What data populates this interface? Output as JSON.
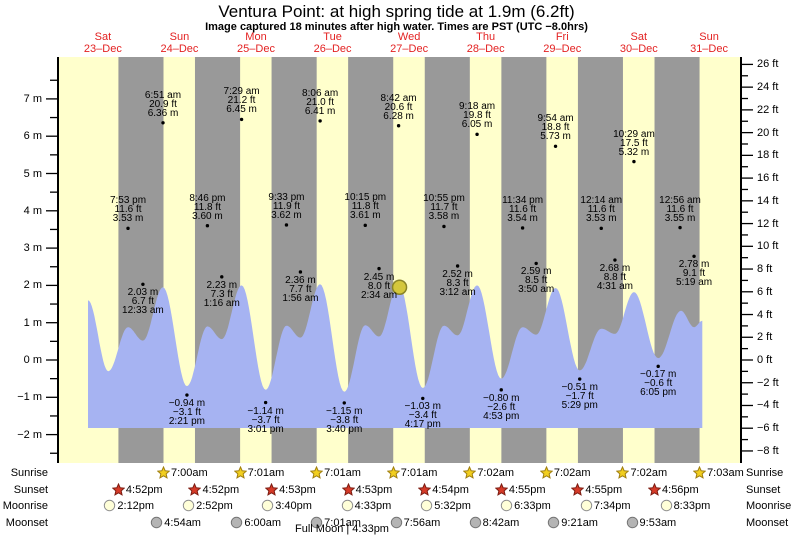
{
  "title": "Ventura Point: at high  spring tide at 1.9m (6.2ft)",
  "subtitle": "Image captured 18 minutes after high water. Times are PST (UTC −8.0hrs)",
  "days": [
    {
      "day": "Sat",
      "date": "23–Dec"
    },
    {
      "day": "Sun",
      "date": "24–Dec"
    },
    {
      "day": "Mon",
      "date": "25–Dec"
    },
    {
      "day": "Tue",
      "date": "26–Dec"
    },
    {
      "day": "Wed",
      "date": "27–Dec"
    },
    {
      "day": "Thu",
      "date": "28–Dec"
    },
    {
      "day": "Fri",
      "date": "29–Dec"
    },
    {
      "day": "Sat",
      "date": "30–Dec"
    },
    {
      "day": "Sun",
      "date": "31–Dec"
    }
  ],
  "colors": {
    "day_band": "#ffffcc",
    "night_band": "#999999",
    "tide_fill": "#a6b3f2",
    "day_label_red": "#e32222",
    "axis_black": "#000000",
    "marker_fill": "#d4c73c",
    "marker_stroke": "#8a8426",
    "sunrise_fill": "#f2cf1f",
    "sunrise_stroke": "#a07f10",
    "sunset_fill": "#d63a28",
    "sunset_stroke": "#7d1d12",
    "moonrise_fill": "#ffffd8",
    "moonrise_stroke": "#8f8f8f",
    "moonset_fill": "#b4b4b4",
    "moonset_stroke": "#757575"
  },
  "chart_data": {
    "type": "area",
    "title": "Ventura Point tide, Sat 23-Dec to Sun 31-Dec (PST)",
    "x_unit": "hours from Sat 23-Dec 00:00",
    "y_axis_left": {
      "unit": "m",
      "ticks": [
        7,
        6,
        5,
        4,
        3,
        2,
        1,
        0,
        -1,
        -2
      ],
      "labels": [
        "7 m",
        "6 m",
        "5 m",
        "4 m",
        "3 m",
        "2 m",
        "1 m",
        "0 m",
        "−1 m",
        "−2 m"
      ],
      "minor_step_m": 0.5
    },
    "y_axis_right": {
      "unit": "ft",
      "ticks": [
        26,
        24,
        22,
        20,
        18,
        16,
        14,
        12,
        10,
        8,
        6,
        4,
        2,
        0,
        -2,
        -4,
        -6,
        -8
      ],
      "labels": [
        "26 ft",
        "24 ft",
        "22 ft",
        "20 ft",
        "18 ft",
        "16 ft",
        "14 ft",
        "12 ft",
        "10 ft",
        "8 ft",
        "6 ft",
        "4 ft",
        "2 ft",
        "0 ft",
        "−2 ft",
        "−4 ft",
        "−6 ft",
        "−8 ft"
      ]
    },
    "night_bands_hours": [
      [
        16.87,
        31.0
      ],
      [
        40.87,
        55.02
      ],
      [
        64.88,
        79.02
      ],
      [
        88.88,
        103.02
      ],
      [
        112.9,
        127.03
      ],
      [
        136.92,
        151.03
      ],
      [
        160.92,
        175.03
      ],
      [
        184.93,
        199.05
      ]
    ],
    "tide_curve_points_t_vs_m": [
      [
        7.34,
        1.6
      ],
      [
        13.7,
        -0.3
      ],
      [
        19.88,
        0.88
      ],
      [
        24.55,
        0.52
      ],
      [
        30.85,
        1.95
      ],
      [
        38.35,
        -0.7
      ],
      [
        44.77,
        0.9
      ],
      [
        49.27,
        0.56
      ],
      [
        55.48,
        2.0
      ],
      [
        63.02,
        -0.8
      ],
      [
        69.55,
        0.92
      ],
      [
        73.93,
        0.6
      ],
      [
        80.1,
        2.03
      ],
      [
        87.67,
        -0.85
      ],
      [
        94.25,
        0.93
      ],
      [
        98.57,
        0.63
      ],
      [
        104.7,
        2.06
      ],
      [
        112.28,
        -0.75
      ],
      [
        118.92,
        0.92
      ],
      [
        123.2,
        0.66
      ],
      [
        129.3,
        2.0
      ],
      [
        136.88,
        -0.5
      ],
      [
        143.57,
        0.88
      ],
      [
        147.83,
        0.68
      ],
      [
        153.9,
        1.93
      ],
      [
        161.48,
        -0.28
      ],
      [
        168.23,
        0.84
      ],
      [
        172.52,
        0.7
      ],
      [
        178.48,
        1.82
      ],
      [
        186.08,
        0.05
      ],
      [
        193.2,
        1.32
      ],
      [
        197.32,
        0.88
      ],
      [
        199.9,
        1.05
      ]
    ],
    "annotations": {
      "morning_highs": {
        "text_position": "above-dot",
        "entries": [
          {
            "t": 30.85,
            "v": 6.36,
            "lines": [
              "6:51 am",
              "20.9 ft",
              "6.36 m"
            ]
          },
          {
            "t": 55.48,
            "v": 6.45,
            "lines": [
              "7:29 am",
              "21.2 ft",
              "6.45 m"
            ]
          },
          {
            "t": 80.1,
            "v": 6.41,
            "lines": [
              "8:06 am",
              "21.0 ft",
              "6.41 m"
            ]
          },
          {
            "t": 104.7,
            "v": 6.28,
            "lines": [
              "8:42 am",
              "20.6 ft",
              "6.28 m"
            ]
          },
          {
            "t": 129.3,
            "v": 6.05,
            "lines": [
              "9:18 am",
              "19.8 ft",
              "6.05 m"
            ]
          },
          {
            "t": 153.9,
            "v": 5.73,
            "lines": [
              "9:54 am",
              "18.8 ft",
              "5.73 m"
            ]
          },
          {
            "t": 178.48,
            "v": 5.32,
            "lines": [
              "10:29 am",
              "17.5 ft",
              "5.32 m"
            ]
          }
        ]
      },
      "evening_highs": {
        "text_position": "above-dot",
        "entries": [
          {
            "t": 19.88,
            "v": 3.53,
            "lines": [
              "7:53 pm",
              "11.6 ft",
              "3.53 m"
            ]
          },
          {
            "t": 44.77,
            "v": 3.6,
            "lines": [
              "8:46 pm",
              "11.8 ft",
              "3.60 m"
            ]
          },
          {
            "t": 69.55,
            "v": 3.62,
            "lines": [
              "9:33 pm",
              "11.9 ft",
              "3.62 m"
            ]
          },
          {
            "t": 94.25,
            "v": 3.61,
            "lines": [
              "10:15 pm",
              "11.8 ft",
              "3.61 m"
            ]
          },
          {
            "t": 118.92,
            "v": 3.58,
            "lines": [
              "10:55 pm",
              "11.7 ft",
              "3.58 m"
            ]
          },
          {
            "t": 143.57,
            "v": 3.54,
            "lines": [
              "11:34 pm",
              "11.6 ft",
              "3.54 m"
            ]
          },
          {
            "t": 168.23,
            "v": 3.53,
            "lines": [
              "12:14 am",
              "11.6 ft",
              "3.53 m"
            ]
          },
          {
            "t": 192.93,
            "v": 3.55,
            "lines": [
              "12:56 am",
              "11.6 ft",
              "3.55 m"
            ]
          }
        ]
      },
      "overnight_highs": {
        "text_position": "below-dot",
        "entries": [
          {
            "t": 24.55,
            "v": 2.03,
            "lines": [
              "2.03 m",
              "6.7 ft",
              "12:33 am"
            ]
          },
          {
            "t": 49.27,
            "v": 2.23,
            "lines": [
              "2.23 m",
              "7.3 ft",
              "1:16 am"
            ]
          },
          {
            "t": 73.93,
            "v": 2.36,
            "lines": [
              "2.36 m",
              "7.7 ft",
              "1:56 am"
            ]
          },
          {
            "t": 98.57,
            "v": 2.45,
            "lines": [
              "2.45 m",
              "8.0 ft",
              "2:34 am"
            ]
          },
          {
            "t": 123.2,
            "v": 2.52,
            "lines": [
              "2.52 m",
              "8.3 ft",
              "3:12 am"
            ]
          },
          {
            "t": 147.83,
            "v": 2.59,
            "lines": [
              "2.59 m",
              "8.5 ft",
              "3:50 am"
            ]
          },
          {
            "t": 172.52,
            "v": 2.68,
            "lines": [
              "2.68 m",
              "8.8 ft",
              "4:31 am"
            ]
          },
          {
            "t": 197.32,
            "v": 2.78,
            "lines": [
              "2.78 m",
              "9.1 ft",
              "5:19 am"
            ]
          }
        ]
      },
      "afternoon_lows": {
        "text_position": "below-dot",
        "entries": [
          {
            "t": 38.35,
            "v": -0.94,
            "lines": [
              "−0.94 m",
              "−3.1 ft",
              "2:21 pm"
            ]
          },
          {
            "t": 63.02,
            "v": -1.14,
            "lines": [
              "−1.14 m",
              "−3.7 ft",
              "3:01 pm"
            ]
          },
          {
            "t": 87.67,
            "v": -1.15,
            "lines": [
              "−1.15 m",
              "−3.8 ft",
              "3:40 pm"
            ]
          },
          {
            "t": 112.28,
            "v": -1.03,
            "lines": [
              "−1.03 m",
              "−3.4 ft",
              "4:17 pm"
            ]
          },
          {
            "t": 136.88,
            "v": -0.8,
            "lines": [
              "−0.80 m",
              "−2.6 ft",
              "4:53 pm"
            ]
          },
          {
            "t": 161.48,
            "v": -0.51,
            "lines": [
              "−0.51 m",
              "−1.7 ft",
              "5:29 pm"
            ]
          },
          {
            "t": 186.08,
            "v": -0.17,
            "lines": [
              "−0.17 m",
              "−0.6 ft",
              "6:05 pm"
            ]
          }
        ]
      }
    },
    "current_time_marker": {
      "t": 105.0,
      "v": 1.95,
      "note": "18 minutes after high water"
    }
  },
  "astro": {
    "rows": [
      {
        "label": "Sunrise",
        "icon": "sunrise-star",
        "events": [
          {
            "t": 31.0,
            "label": "7:00am"
          },
          {
            "t": 55.02,
            "label": "7:01am"
          },
          {
            "t": 79.02,
            "label": "7:01am"
          },
          {
            "t": 103.02,
            "label": "7:01am"
          },
          {
            "t": 127.03,
            "label": "7:02am"
          },
          {
            "t": 151.03,
            "label": "7:02am"
          },
          {
            "t": 175.03,
            "label": "7:02am"
          },
          {
            "t": 199.05,
            "label": "7:03am"
          }
        ]
      },
      {
        "label": "Sunset",
        "icon": "sunset-star",
        "events": [
          {
            "t": 16.87,
            "label": "4:52pm"
          },
          {
            "t": 40.87,
            "label": "4:52pm"
          },
          {
            "t": 64.88,
            "label": "4:53pm"
          },
          {
            "t": 88.88,
            "label": "4:53pm"
          },
          {
            "t": 112.9,
            "label": "4:54pm"
          },
          {
            "t": 136.92,
            "label": "4:55pm"
          },
          {
            "t": 160.92,
            "label": "4:55pm"
          },
          {
            "t": 184.93,
            "label": "4:56pm"
          }
        ]
      },
      {
        "label": "Moonrise",
        "icon": "moonrise-circle",
        "events": [
          {
            "t": 14.2,
            "label": "2:12pm"
          },
          {
            "t": 38.87,
            "label": "2:52pm"
          },
          {
            "t": 63.67,
            "label": "3:40pm"
          },
          {
            "t": 88.55,
            "label": "4:33pm"
          },
          {
            "t": 113.53,
            "label": "5:32pm"
          },
          {
            "t": 138.55,
            "label": "6:33pm"
          },
          {
            "t": 163.57,
            "label": "7:34pm"
          },
          {
            "t": 188.55,
            "label": "8:33pm"
          }
        ]
      },
      {
        "label": "Moonset",
        "icon": "moonset-circle",
        "events": [
          {
            "t": 28.9,
            "label": "4:54am"
          },
          {
            "t": 54.0,
            "label": "6:00am"
          },
          {
            "t": 79.02,
            "label": "7:01am"
          },
          {
            "t": 103.93,
            "label": "7:56am"
          },
          {
            "t": 128.7,
            "label": "8:42am"
          },
          {
            "t": 153.35,
            "label": "9:21am"
          },
          {
            "t": 177.88,
            "label": "9:53am"
          }
        ]
      }
    ],
    "footnote": "Full Moon | 4:33pm"
  }
}
